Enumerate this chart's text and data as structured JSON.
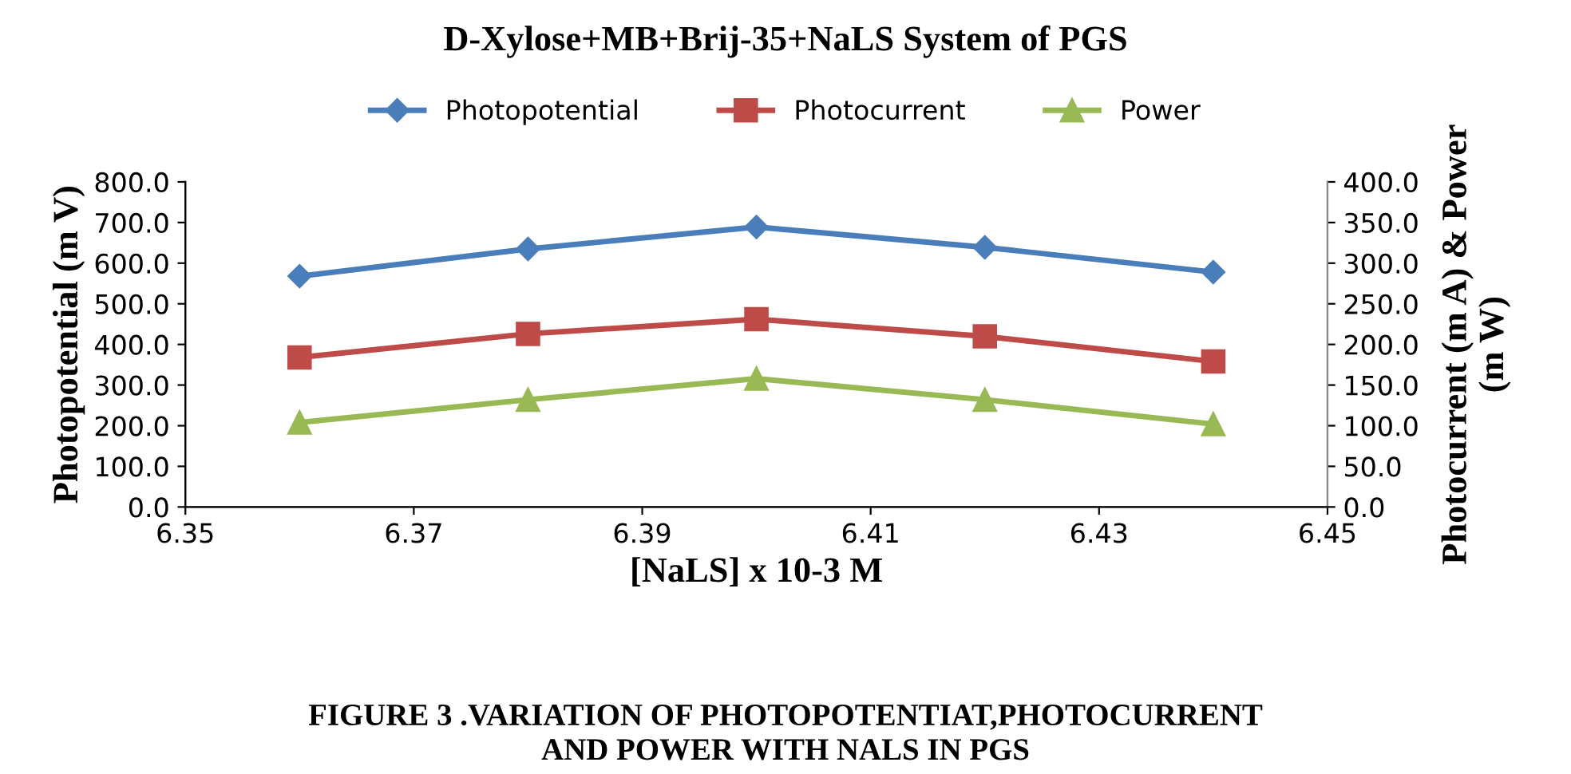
{
  "chart_data": {
    "type": "line",
    "title": "D-Xylose+MB+Brij-35+NaLS System of PGS",
    "xlabel": "[NaLS] x 10-3 M",
    "ylabel": "Photopotential (m V)",
    "y2label": "Photocurrent (m A) & Power\n(m W)",
    "x": [
      6.36,
      6.38,
      6.4,
      6.42,
      6.44
    ],
    "series": [
      {
        "name": "Photopotential",
        "color": "#4a7ebb",
        "marker": "diamond",
        "values": [
          568,
          635,
          689,
          639,
          578
        ]
      },
      {
        "name": "Photocurrent",
        "color": "#be4b48",
        "marker": "square",
        "axis": "y2",
        "values": [
          184,
          213,
          231,
          210,
          179
        ]
      },
      {
        "name": "Power",
        "color": "#98b954",
        "marker": "triangle",
        "axis": "y2",
        "values": [
          104,
          132,
          158,
          132,
          102
        ]
      }
    ],
    "xlim": [
      6.35,
      6.45
    ],
    "xticks": [
      6.35,
      6.37,
      6.39,
      6.41,
      6.43,
      6.45
    ],
    "ylim": [
      0,
      800
    ],
    "yticks": [
      {
        "value": 0,
        "label": "0.0"
      },
      {
        "value": 100,
        "label": "100.0"
      },
      {
        "value": 200,
        "label": "200.0"
      },
      {
        "value": 300,
        "label": "300.0"
      },
      {
        "value": 400,
        "label": "400.0"
      },
      {
        "value": 500,
        "label": "500.0"
      },
      {
        "value": 600,
        "label": "600.0"
      },
      {
        "value": 700,
        "label": "700.0"
      },
      {
        "value": 800,
        "label": "800.0"
      }
    ],
    "y2lim": [
      0,
      400
    ],
    "y2ticks": [
      {
        "value": 0,
        "label": "0.0"
      },
      {
        "value": 50,
        "label": "50.0"
      },
      {
        "value": 100,
        "label": "100.0"
      },
      {
        "value": 150,
        "label": "150.0"
      },
      {
        "value": 200,
        "label": "200.0"
      },
      {
        "value": 250,
        "label": "250.0"
      },
      {
        "value": 300,
        "label": "300.0"
      },
      {
        "value": 350,
        "label": "350.0"
      },
      {
        "value": 400,
        "label": "400.0"
      }
    ],
    "grid": false,
    "legend": "top",
    "line_style": "solid",
    "annotations": [
      "FIGURE 3 .VARIATION OF PHOTOPOTENTIAT,PHOTOCURRENT\nAND POWER WITH NALS IN PGS"
    ]
  }
}
